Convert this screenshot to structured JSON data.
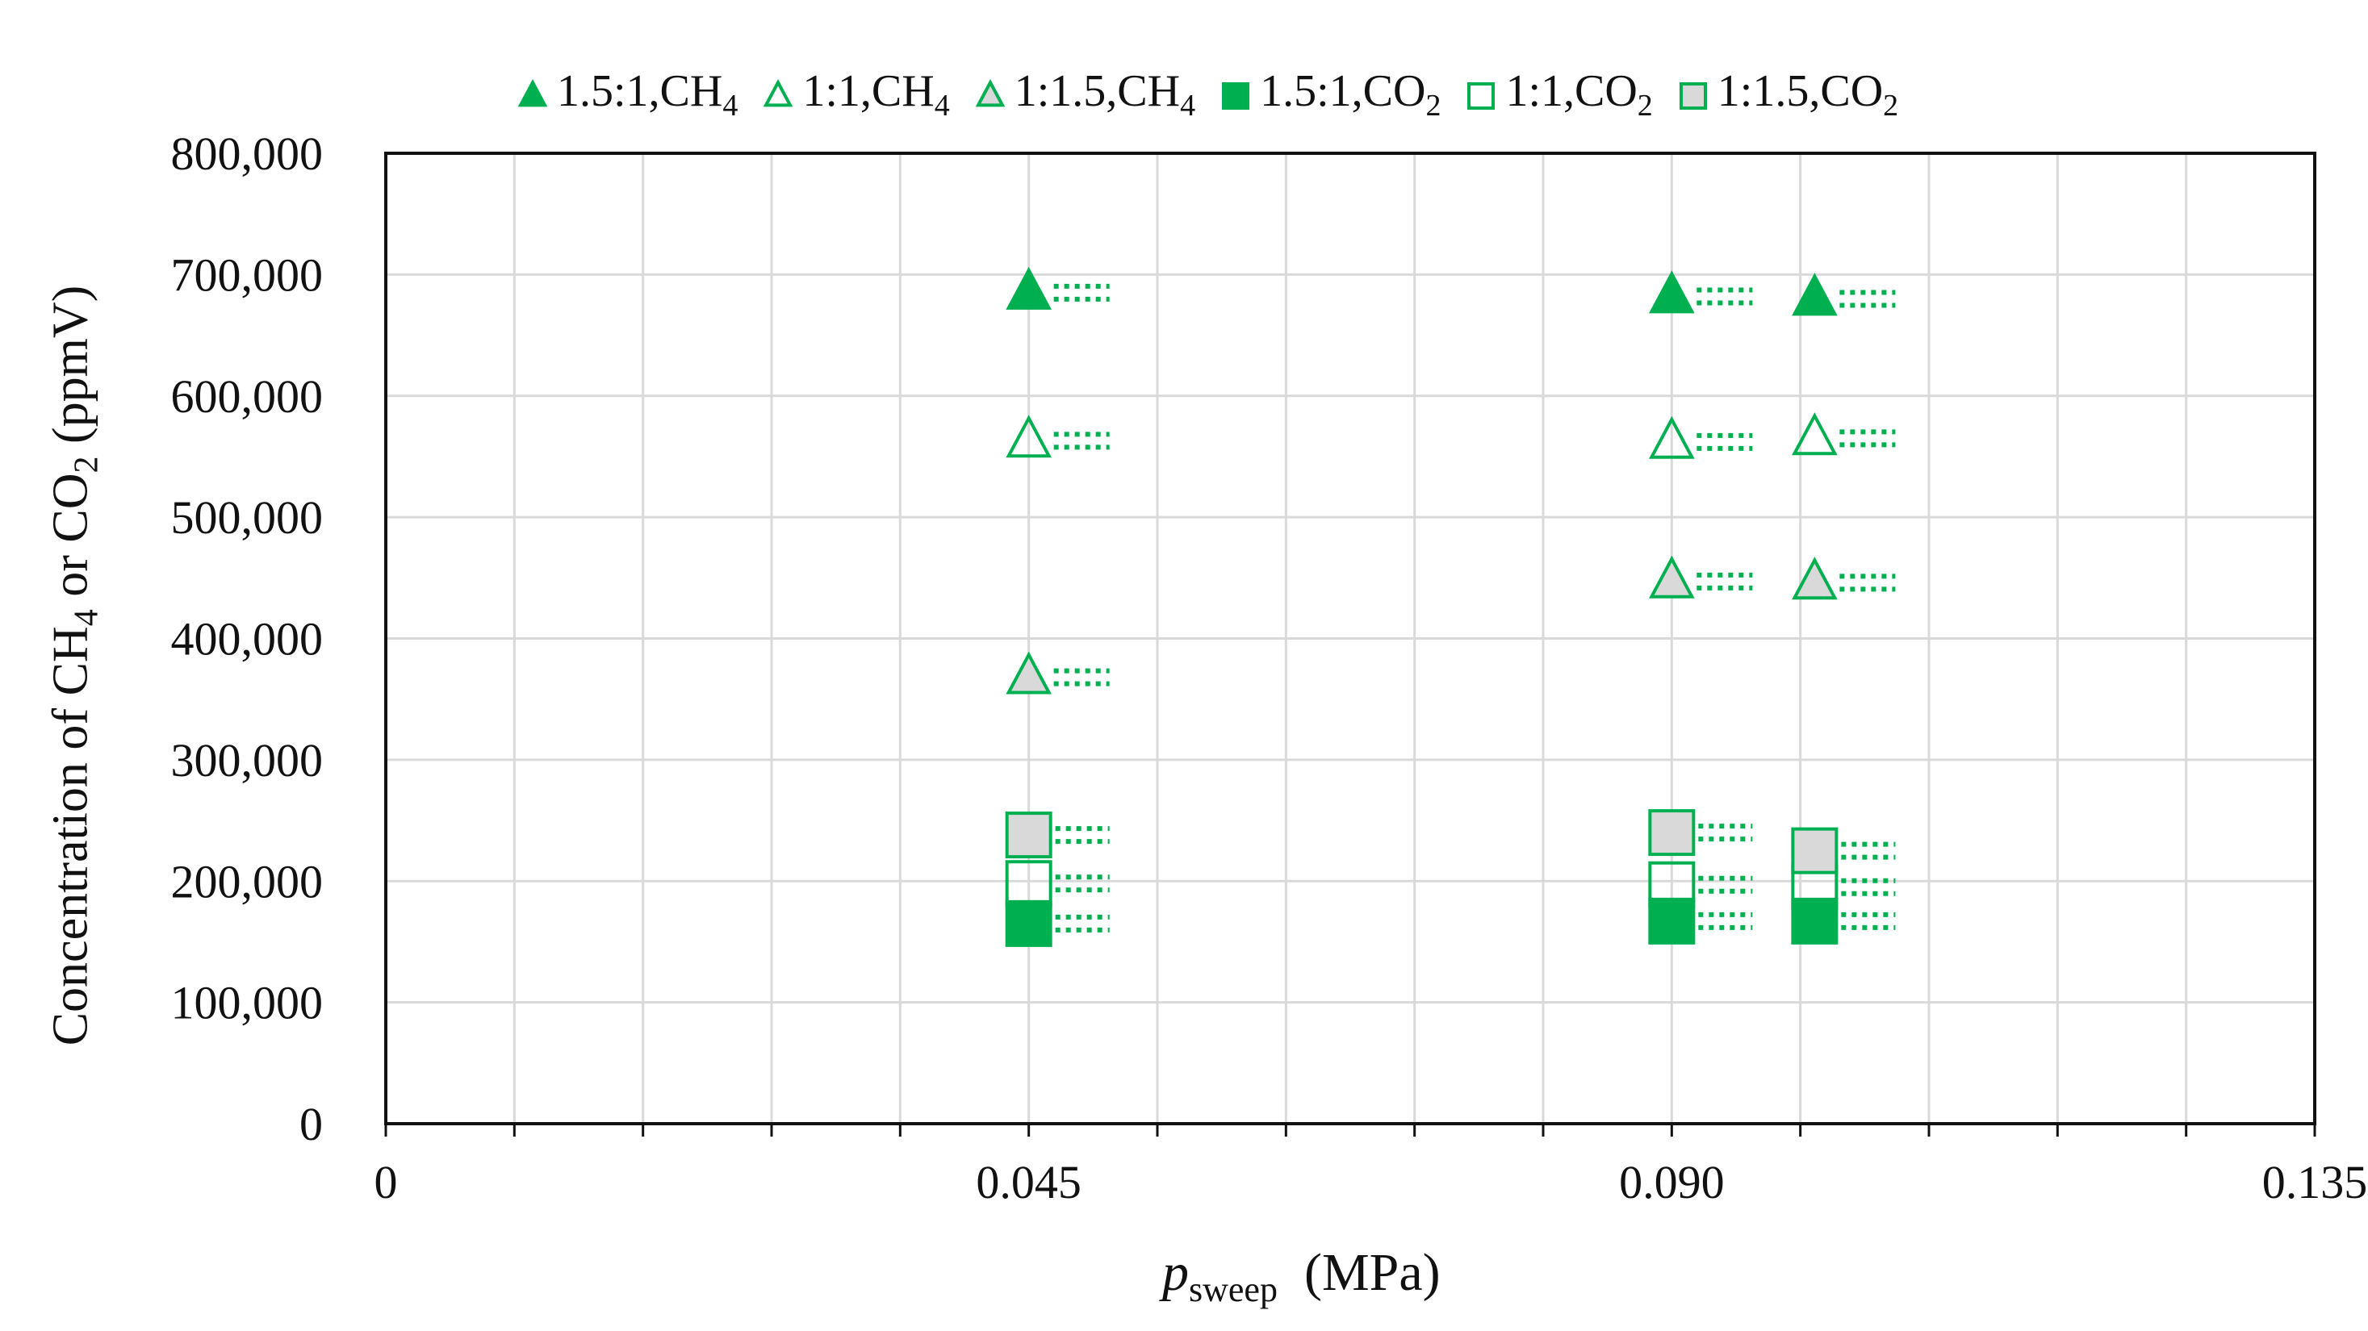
{
  "chart_data": {
    "type": "scatter",
    "title": "",
    "xlabel": {
      "main": "p",
      "sub": "sweep",
      "unit": "(MPa)"
    },
    "ylabel": {
      "pre": "Concentration of CH",
      "sub1": "4",
      "mid": " or CO",
      "sub2": "2",
      "post": " (ppmV)"
    },
    "xlim": [
      0,
      0.135
    ],
    "ylim": [
      0,
      800000
    ],
    "x_ticks": [
      {
        "value": 0,
        "label": "0"
      },
      {
        "value": 0.045,
        "label": "0.045"
      },
      {
        "value": 0.09,
        "label": "0.090"
      },
      {
        "value": 0.135,
        "label": "0.135"
      }
    ],
    "y_ticks": [
      {
        "value": 0,
        "label": "0"
      },
      {
        "value": 100000,
        "label": "100,000"
      },
      {
        "value": 200000,
        "label": "200,000"
      },
      {
        "value": 300000,
        "label": "300,000"
      },
      {
        "value": 400000,
        "label": "400,000"
      },
      {
        "value": 500000,
        "label": "500,000"
      },
      {
        "value": 600000,
        "label": "600,000"
      },
      {
        "value": 700000,
        "label": "700,000"
      },
      {
        "value": 800000,
        "label": "800,000"
      }
    ],
    "vertical_grid_step": 0.009,
    "grid": true,
    "legend_position": "top",
    "colors": {
      "green": "#00b050",
      "gray_fill": "#d9d9d9",
      "grid": "#d9d9d9",
      "axis": "#111111"
    },
    "series": [
      {
        "name": "1.5:1,CH4",
        "label": "1.5:1,CH",
        "sub": "4",
        "marker": "triangle",
        "fill": "green",
        "points": [
          {
            "x": 0.045,
            "y": 685000
          },
          {
            "x": 0.09,
            "y": 682000
          },
          {
            "x": 0.1,
            "y": 680000
          }
        ]
      },
      {
        "name": "1:1,CH4",
        "label": "1:1,CH",
        "sub": "4",
        "marker": "triangle",
        "fill": "none",
        "points": [
          {
            "x": 0.045,
            "y": 563000
          },
          {
            "x": 0.09,
            "y": 562000
          },
          {
            "x": 0.1,
            "y": 565000
          }
        ]
      },
      {
        "name": "1:1.5,CH4",
        "label": "1:1.5,CH",
        "sub": "4",
        "marker": "triangle",
        "fill": "gray",
        "points": [
          {
            "x": 0.045,
            "y": 368000
          },
          {
            "x": 0.09,
            "y": 447000
          },
          {
            "x": 0.1,
            "y": 446000
          }
        ]
      },
      {
        "name": "1.5:1,CO2",
        "label": "1.5:1,CO",
        "sub": "2",
        "marker": "square",
        "fill": "green",
        "points": [
          {
            "x": 0.045,
            "y": 165000
          },
          {
            "x": 0.09,
            "y": 167000
          },
          {
            "x": 0.1,
            "y": 167000
          }
        ]
      },
      {
        "name": "1:1,CO2",
        "label": "1:1,CO",
        "sub": "2",
        "marker": "square",
        "fill": "none",
        "points": [
          {
            "x": 0.045,
            "y": 198000
          },
          {
            "x": 0.09,
            "y": 197000
          },
          {
            "x": 0.1,
            "y": 195000
          }
        ]
      },
      {
        "name": "1:1.5,CO2",
        "label": "1:1.5,CO",
        "sub": "2",
        "marker": "square",
        "fill": "gray",
        "points": [
          {
            "x": 0.045,
            "y": 238000
          },
          {
            "x": 0.09,
            "y": 240000
          },
          {
            "x": 0.1,
            "y": 225000
          }
        ]
      }
    ]
  }
}
